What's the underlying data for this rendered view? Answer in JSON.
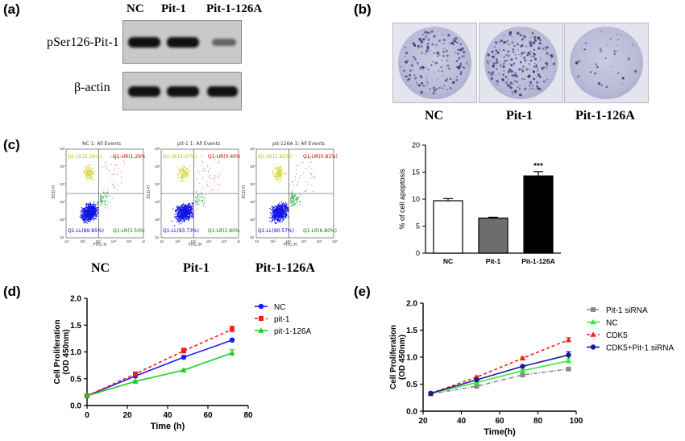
{
  "panels": {
    "a": "(a)",
    "b": "(b)",
    "c": "(c)",
    "d": "(d)",
    "e": "(e)"
  },
  "western_blot": {
    "lanes": [
      "NC",
      "Pit-1",
      "Pit-1-126A"
    ],
    "row1_label": "pSer126-Pit-1",
    "row2_label": "β-actin"
  },
  "colony": {
    "labels": [
      "NC",
      "Pit-1",
      "Pit-1-126A"
    ]
  },
  "flow": {
    "plots": [
      {
        "title": "NC 1: All Events",
        "ul": "Q1-UL(5.36%)",
        "ur": "Q1-UR(1.29%)",
        "ll": "Q1-LL(89.85%)",
        "lr": "Q1-LR(3.50%)",
        "label": "NC"
      },
      {
        "title": "pit-1 1: All Events",
        "ul": "Q1-UL(3.07%)",
        "ur": "Q1-UR(0.40%)",
        "ll": "Q1-LL(93.73%)",
        "lr": "Q1-LR(2.80%)",
        "label": "Pit-1"
      },
      {
        "title": "pit-126A 1: All Events",
        "ul": "Q1-UL(1.82%)",
        "ur": "Q1-UR(0.81%)",
        "ll": "Q1-LL(90.57%)",
        "lr": "Q1-LR(6.80%)",
        "label": "Pit-1-126A"
      }
    ],
    "xlabel": "FITC-H",
    "ylabel": "ECD-H",
    "ticks": [
      "10",
      "10²",
      "10³",
      "10⁴",
      "10⁵",
      "10⁶"
    ]
  },
  "chart_data": [
    {
      "type": "bar",
      "ylabel": "% of cell apoptosis",
      "categories": [
        "NC",
        "Pit-1",
        "Pit-1-126A"
      ],
      "values": [
        9.7,
        6.5,
        14.3
      ],
      "errors": [
        0.4,
        0.15,
        0.8
      ],
      "annotation": "***",
      "ylim": [
        0,
        20
      ],
      "yticks": [
        0,
        5,
        10,
        15,
        20
      ],
      "colors": [
        "#ffffff",
        "#6d6d6d",
        "#000000"
      ]
    },
    {
      "type": "line",
      "xlabel": "Time (h)",
      "ylabel": "Cell Proliferation (OD 450nm)",
      "x": [
        0,
        24,
        48,
        72
      ],
      "xlim": [
        0,
        80
      ],
      "xticks": [
        0,
        20,
        40,
        60,
        80
      ],
      "ylim": [
        0,
        2.0
      ],
      "yticks": [
        "0.0",
        "0.5",
        "1.0",
        "1.5",
        "2.0"
      ],
      "series": [
        {
          "name": "NC",
          "values": [
            0.18,
            0.55,
            0.9,
            1.22
          ],
          "errors": [
            0.02,
            0.03,
            0.03,
            0.03
          ],
          "color": "#1a1aff",
          "dash": "",
          "marker": "circle"
        },
        {
          "name": "pit-1",
          "values": [
            0.18,
            0.59,
            1.02,
            1.42
          ],
          "errors": [
            0.02,
            0.03,
            0.05,
            0.06
          ],
          "color": "#ff1a1a",
          "dash": "4,3",
          "marker": "square"
        },
        {
          "name": "pit-1-126A",
          "values": [
            0.18,
            0.45,
            0.66,
            0.98
          ],
          "errors": [
            0.02,
            0.02,
            0.02,
            0.06
          ],
          "color": "#22cc22",
          "dash": "",
          "marker": "triangle"
        }
      ]
    },
    {
      "type": "line",
      "xlabel": "Time(h)",
      "ylabel": "Cell Proliferation (OD 450nm)",
      "x": [
        24,
        48,
        72,
        96
      ],
      "xlim": [
        20,
        100
      ],
      "xticks": [
        20,
        40,
        60,
        80,
        100
      ],
      "ylim": [
        0,
        2.0
      ],
      "yticks": [
        "0.0",
        "0.5",
        "1.0",
        "1.5",
        "2.0"
      ],
      "series": [
        {
          "name": "Pit-1 siRNA",
          "values": [
            0.32,
            0.46,
            0.67,
            0.78
          ],
          "errors": [
            0.02,
            0.02,
            0.02,
            0.03
          ],
          "color": "#888888",
          "dash": "5,2,1,2",
          "marker": "square"
        },
        {
          "name": "NC",
          "values": [
            0.33,
            0.53,
            0.75,
            0.93
          ],
          "errors": [
            0.02,
            0.02,
            0.02,
            0.04
          ],
          "color": "#33ee33",
          "dash": "",
          "marker": "triangle"
        },
        {
          "name": "CDK5",
          "values": [
            0.33,
            0.63,
            0.98,
            1.32
          ],
          "errors": [
            0.02,
            0.02,
            0.02,
            0.04
          ],
          "color": "#ff1a1a",
          "dash": "4,3",
          "marker": "triangle"
        },
        {
          "name": "CDK5+Pit-1 siRNA",
          "values": [
            0.33,
            0.58,
            0.83,
            1.04
          ],
          "errors": [
            0.02,
            0.02,
            0.02,
            0.06
          ],
          "color": "#1a1a99",
          "dash": "",
          "marker": "circle"
        }
      ]
    }
  ]
}
